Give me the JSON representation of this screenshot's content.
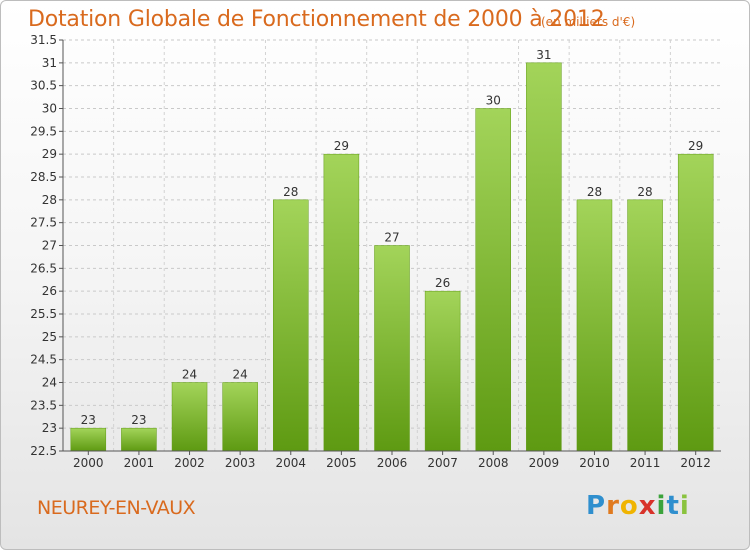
{
  "header": {
    "title": "Dotation Globale de Fonctionnement de 2000 à 2012",
    "subtitle": "(en milliers d'€)"
  },
  "commune": "NEUREY-EN-VAUX",
  "logo": {
    "text": "Proxiti",
    "letters": [
      "P",
      "r",
      "o",
      "x",
      "i",
      "t",
      "i"
    ],
    "colors": [
      "#2f8fce",
      "#e07a1f",
      "#f0b400",
      "#d8322a",
      "#3ba33b",
      "#2f8fce",
      "#8ac33e"
    ]
  },
  "chart_data": {
    "type": "bar",
    "categories": [
      "2000",
      "2001",
      "2002",
      "2003",
      "2004",
      "2005",
      "2006",
      "2007",
      "2008",
      "2009",
      "2010",
      "2011",
      "2012"
    ],
    "values": [
      23,
      23,
      24,
      24,
      28,
      29,
      27,
      26,
      30,
      31,
      28,
      28,
      29
    ],
    "data_labels": [
      "23",
      "23",
      "24",
      "24",
      "28",
      "29",
      "27",
      "26",
      "30",
      "31",
      "28",
      "28",
      "29"
    ],
    "title": "Dotation Globale de Fonctionnement de 2000 à 2012",
    "xlabel": "",
    "ylabel": "",
    "ylim": [
      22.5,
      31.5
    ],
    "yticks": [
      "22.5",
      "23",
      "23.5",
      "24",
      "24.5",
      "25",
      "25.5",
      "26",
      "26.5",
      "27",
      "27.5",
      "28",
      "28.5",
      "29",
      "29.5",
      "30",
      "30.5",
      "31",
      "31.5"
    ],
    "grid": true,
    "bar_color": "#7fbf2a"
  }
}
